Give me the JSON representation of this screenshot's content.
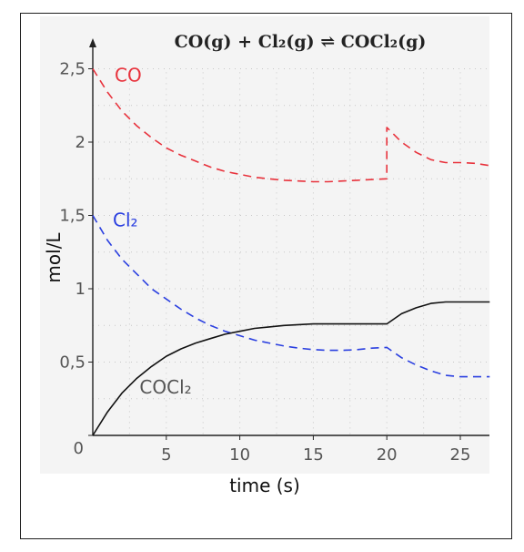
{
  "chart_data": {
    "type": "line",
    "title": "CO(g) + Cl₂(g) ⇌ COCl₂(g)",
    "xlabel": "time (s)",
    "ylabel": "mol/L",
    "xlim": [
      0,
      27
    ],
    "ylim": [
      0,
      2.6
    ],
    "x_ticks": [
      {
        "value": 5,
        "label": "5"
      },
      {
        "value": 10,
        "label": "10"
      },
      {
        "value": 15,
        "label": "15"
      },
      {
        "value": 20,
        "label": "20"
      },
      {
        "value": 25,
        "label": "25"
      }
    ],
    "y_ticks": [
      {
        "value": 0,
        "label": "0"
      },
      {
        "value": 0.5,
        "label": "0,5"
      },
      {
        "value": 1,
        "label": "1"
      },
      {
        "value": 1.5,
        "label": "1,5"
      },
      {
        "value": 2,
        "label": "2"
      },
      {
        "value": 2.5,
        "label": "2,5"
      }
    ],
    "grid": true,
    "series": [
      {
        "name": "CO",
        "color": "#e8323c",
        "style": "dashed",
        "x": [
          0,
          1,
          2,
          3,
          4,
          5,
          6,
          7,
          8,
          9,
          10,
          11,
          12,
          13,
          14,
          15,
          16,
          17,
          18,
          19,
          20,
          20,
          21,
          22,
          23,
          24,
          25,
          26,
          27
        ],
        "y": [
          2.5,
          2.34,
          2.21,
          2.11,
          2.03,
          1.96,
          1.91,
          1.87,
          1.83,
          1.8,
          1.78,
          1.76,
          1.75,
          1.74,
          1.735,
          1.73,
          1.73,
          1.735,
          1.74,
          1.745,
          1.75,
          2.1,
          2.0,
          1.93,
          1.88,
          1.86,
          1.86,
          1.855,
          1.84
        ]
      },
      {
        "name": "Cl₂",
        "color": "#2a3fe0",
        "style": "dashed",
        "x": [
          0,
          1,
          2,
          3,
          4,
          5,
          6,
          7,
          8,
          9,
          10,
          11,
          12,
          13,
          14,
          15,
          16,
          17,
          18,
          19,
          20,
          21,
          22,
          23,
          24,
          25,
          26,
          27
        ],
        "y": [
          1.5,
          1.33,
          1.2,
          1.1,
          1.0,
          0.93,
          0.86,
          0.8,
          0.75,
          0.71,
          0.68,
          0.65,
          0.63,
          0.61,
          0.595,
          0.585,
          0.58,
          0.58,
          0.585,
          0.595,
          0.6,
          0.53,
          0.48,
          0.44,
          0.41,
          0.4,
          0.4,
          0.4
        ]
      },
      {
        "name": "COCl₂",
        "color": "#111111",
        "style": "solid",
        "x": [
          0,
          1,
          2,
          3,
          4,
          5,
          6,
          7,
          8,
          9,
          10,
          11,
          12,
          13,
          14,
          15,
          16,
          17,
          18,
          19,
          20,
          21,
          22,
          23,
          24,
          25,
          26,
          27
        ],
        "y": [
          0.0,
          0.16,
          0.29,
          0.39,
          0.47,
          0.54,
          0.59,
          0.63,
          0.66,
          0.69,
          0.71,
          0.73,
          0.74,
          0.75,
          0.755,
          0.76,
          0.76,
          0.76,
          0.76,
          0.76,
          0.76,
          0.83,
          0.87,
          0.9,
          0.91,
          0.91,
          0.91,
          0.91
        ]
      }
    ],
    "annotations": [
      {
        "text": "CO",
        "series": 0,
        "color": "#e8323c"
      },
      {
        "text": "Cl₂",
        "series": 1,
        "color": "#2a3fe0"
      },
      {
        "text": "COCl₂",
        "series": 2,
        "color": "#555555"
      }
    ]
  }
}
